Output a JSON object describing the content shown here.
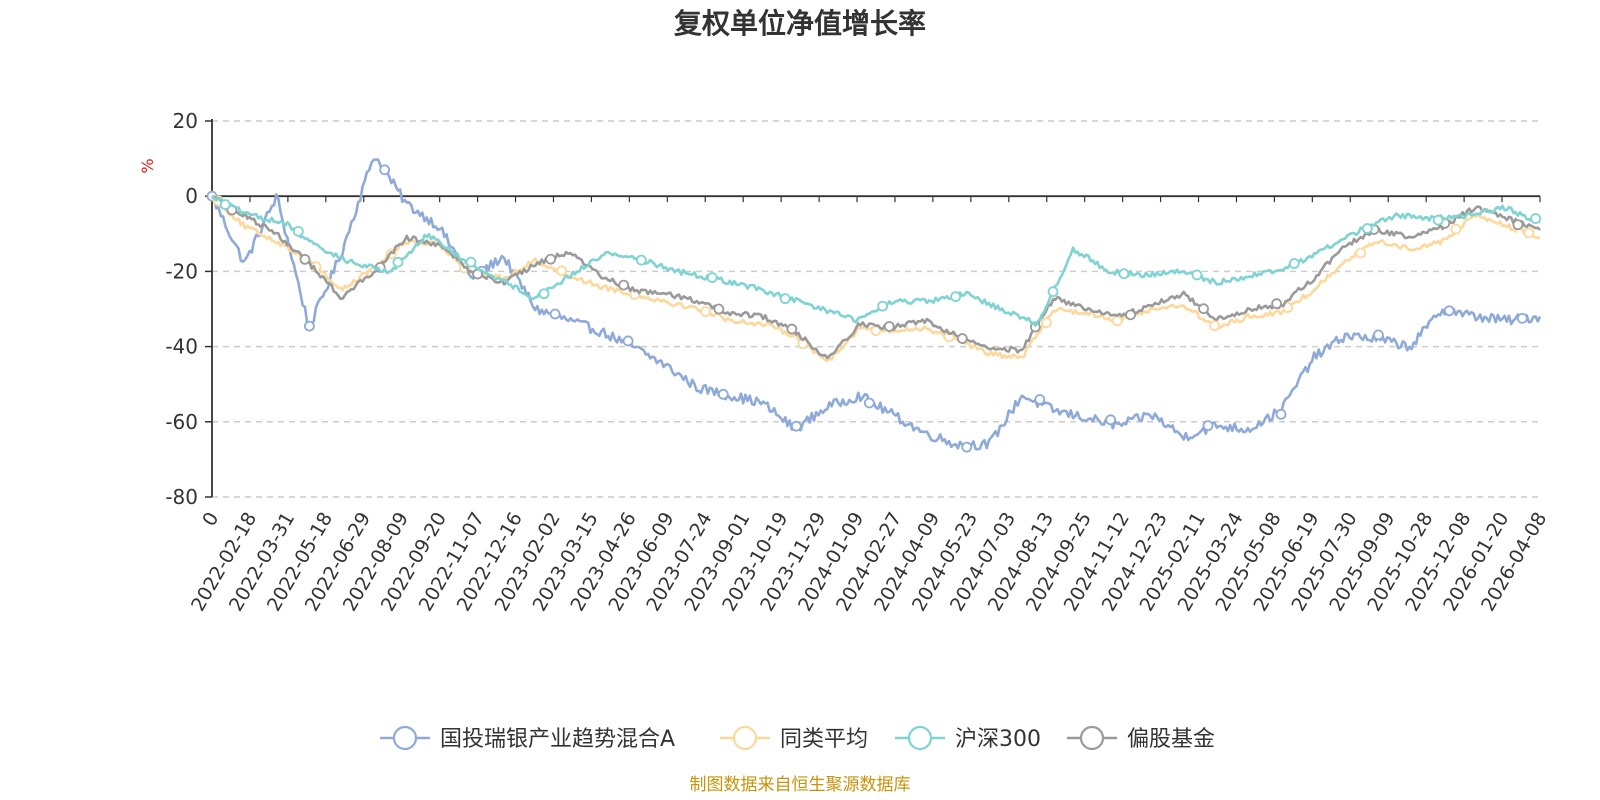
{
  "chart_data": {
    "type": "line",
    "title": "复权单位净值增长率",
    "ylabel": "%",
    "ylim": [
      -80,
      20
    ],
    "y_ticks": [
      20,
      0,
      -20,
      -40,
      -60,
      -80
    ],
    "x_ticks": [
      "0",
      "2022-02-18",
      "2022-03-31",
      "2022-05-18",
      "2022-06-29",
      "2022-08-09",
      "2022-09-20",
      "2022-11-07",
      "2022-12-16",
      "2023-02-02",
      "2023-03-15",
      "2023-04-26",
      "2023-06-09",
      "2023-07-24",
      "2023-09-01",
      "2023-10-19",
      "2023-11-29",
      "2024-01-09",
      "2024-02-27",
      "2024-04-09",
      "2024-05-23",
      "2024-07-03",
      "2024-08-13",
      "2024-09-25",
      "2024-11-12",
      "2024-12-23",
      "2025-02-11",
      "2025-03-24",
      "2025-05-08",
      "2025-06-19",
      "2025-07-30",
      "2025-09-09",
      "2025-10-28",
      "2025-12-08",
      "2026-01-20",
      "2026-04-08"
    ],
    "grid": true,
    "legend_position": "bottom",
    "series": [
      {
        "name": "国投瑞银产业趋势混合A",
        "color": "#8eaad8",
        "values": [
          0,
          -18,
          0,
          -35,
          -15,
          11,
          -2,
          -8,
          -22,
          -16,
          -30,
          -33,
          -36,
          -40,
          -45,
          -51,
          -53,
          -55,
          -62,
          -56,
          -53,
          -58,
          -63,
          -66,
          -66,
          -53,
          -57,
          -59,
          -61,
          -58,
          -64,
          -61,
          -62,
          -57,
          -43,
          -37,
          -38,
          -40,
          -30,
          -32,
          -33,
          -32
        ]
      },
      {
        "name": "同类平均",
        "color": "#fdd89b",
        "values": [
          0,
          -8,
          -12,
          -17,
          -25,
          -19,
          -12,
          -13,
          -20,
          -22,
          -17,
          -21,
          -24,
          -26,
          -28,
          -30,
          -33,
          -34,
          -37,
          -44,
          -35,
          -36,
          -35,
          -38,
          -42,
          -43,
          -30,
          -31,
          -33,
          -30,
          -29,
          -35,
          -32,
          -31,
          -25,
          -17,
          -12,
          -14,
          -12,
          -5,
          -8,
          -11
        ]
      },
      {
        "name": "沪深300",
        "color": "#7fd3d3",
        "values": [
          0,
          -5,
          -7,
          -14,
          -18,
          -20,
          -10,
          -17,
          -22,
          -27,
          -21,
          -15,
          -17,
          -20,
          -22,
          -24,
          -27,
          -30,
          -33,
          -28,
          -28,
          -26,
          -30,
          -34,
          -14,
          -20,
          -21,
          -20,
          -23,
          -21,
          -19,
          -14,
          -9,
          -5,
          -6,
          -5,
          -3,
          -7
        ]
      },
      {
        "name": "偏股基金",
        "color": "#9a9a9a",
        "values": [
          0,
          -5,
          -10,
          -18,
          -27,
          -20,
          -11,
          -13,
          -20,
          -23,
          -18,
          -15,
          -21,
          -25,
          -26,
          -28,
          -31,
          -32,
          -36,
          -43,
          -34,
          -35,
          -33,
          -37,
          -40,
          -41,
          -27,
          -30,
          -32,
          -29,
          -26,
          -33,
          -30,
          -29,
          -22,
          -13,
          -9,
          -11,
          -8,
          -3,
          -6,
          -9
        ]
      }
    ],
    "source": "制图数据来自恒生聚源数据库"
  }
}
